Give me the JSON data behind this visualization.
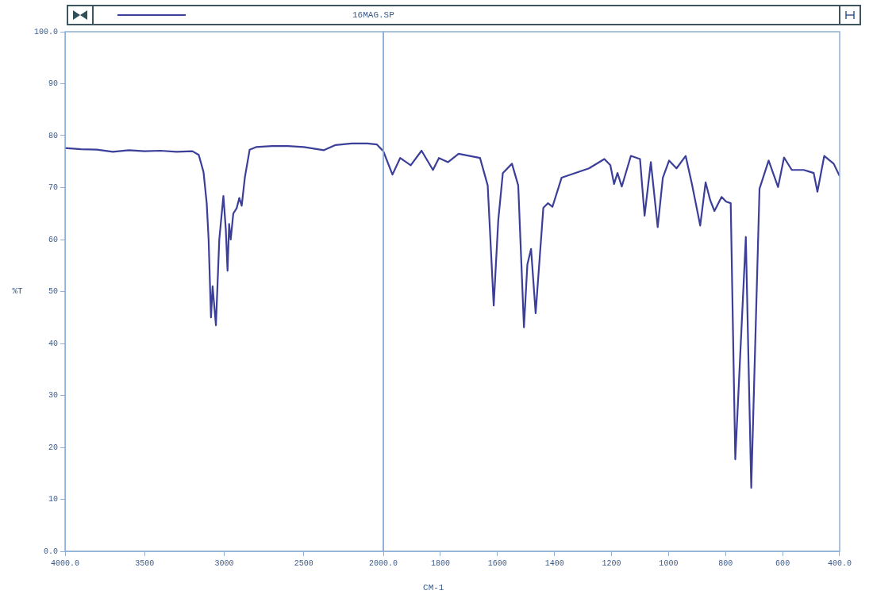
{
  "chart_data": [
    {
      "type": "line",
      "ylabel": "%T",
      "legend": "top",
      "xlim": [
        4000,
        2000
      ],
      "xticks": [
        {
          "value": 4000,
          "label": "4000.0"
        },
        3500,
        3000,
        2500,
        {
          "value": 2000,
          "label": null
        }
      ],
      "ylim": [
        0,
        100
      ],
      "yticks": [
        {
          "value": 0,
          "label": "0.0"
        },
        10,
        20,
        30,
        40,
        50,
        60,
        70,
        80,
        90,
        {
          "value": 100,
          "label": "100.0"
        }
      ],
      "series": [
        {
          "name": "16MAG.SP",
          "color": "#3b3f9a",
          "x": [
            4000,
            3900,
            3800,
            3700,
            3600,
            3500,
            3400,
            3300,
            3200,
            3160,
            3130,
            3110,
            3098,
            3083,
            3073,
            3052,
            3031,
            3005,
            2990,
            2979,
            2969,
            2959,
            2943,
            2922,
            2905,
            2890,
            2870,
            2840,
            2800,
            2700,
            2600,
            2500,
            2373,
            2300,
            2200,
            2100,
            2040,
            2000
          ],
          "values": [
            77.6,
            77.4,
            77.3,
            76.9,
            77.2,
            77.0,
            77.1,
            76.9,
            77.0,
            76.3,
            73.0,
            67.0,
            60.0,
            45.0,
            51.0,
            43.5,
            60.0,
            68.4,
            62.0,
            54.0,
            63.0,
            60.0,
            65.0,
            66.0,
            68.0,
            66.5,
            72.0,
            77.3,
            77.8,
            78.0,
            78.0,
            77.8,
            77.2,
            78.2,
            78.5,
            78.5,
            78.3,
            77.0
          ]
        }
      ]
    },
    {
      "type": "line",
      "xlabel": "CM-1",
      "tick_labels": "x",
      "xlim": [
        2000,
        400
      ],
      "xticks": [
        {
          "value": 2000,
          "label": "2000.0"
        },
        1800,
        1600,
        1400,
        1200,
        1000,
        800,
        600,
        {
          "value": 400,
          "label": "400.0"
        }
      ],
      "ylim": [
        0,
        100
      ],
      "series": [
        {
          "color": "#3b3f9a",
          "x": [
            2000,
            1968,
            1941,
            1904,
            1866,
            1826,
            1805,
            1773,
            1736,
            1661,
            1634,
            1613,
            1597,
            1581,
            1549,
            1527,
            1507,
            1495,
            1482,
            1466,
            1439,
            1423,
            1407,
            1375,
            1332,
            1279,
            1225,
            1204,
            1191,
            1179,
            1164,
            1132,
            1100,
            1084,
            1062,
            1038,
            1020,
            998,
            972,
            940,
            918,
            889,
            870,
            854,
            839,
            814,
            798,
            782,
            766,
            729,
            710,
            681,
            649,
            616,
            595,
            568,
            526,
            491,
            478,
            454,
            421,
            400
          ],
          "values": [
            77.0,
            72.5,
            75.7,
            74.3,
            77.1,
            73.4,
            75.7,
            74.9,
            76.5,
            75.7,
            70.4,
            47.3,
            63.7,
            72.8,
            74.6,
            70.4,
            43.1,
            55.2,
            58.2,
            45.8,
            66.1,
            67.0,
            66.3,
            71.9,
            72.7,
            73.7,
            75.5,
            74.3,
            70.7,
            72.8,
            70.2,
            76.1,
            75.5,
            64.6,
            74.9,
            62.4,
            71.9,
            75.2,
            73.7,
            76.1,
            70.7,
            62.7,
            71.0,
            67.6,
            65.5,
            68.2,
            67.3,
            67.0,
            17.7,
            60.5,
            12.2,
            69.8,
            75.2,
            70.1,
            75.8,
            73.4,
            73.4,
            72.8,
            69.2,
            76.1,
            74.6,
            72.2
          ]
        }
      ]
    }
  ]
}
